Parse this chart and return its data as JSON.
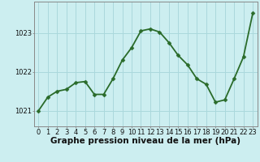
{
  "x": [
    0,
    1,
    2,
    3,
    4,
    5,
    6,
    7,
    8,
    9,
    10,
    11,
    12,
    13,
    14,
    15,
    16,
    17,
    18,
    19,
    20,
    21,
    22,
    23
  ],
  "y": [
    1021.0,
    1021.35,
    1021.5,
    1021.55,
    1021.72,
    1021.75,
    1021.42,
    1021.42,
    1021.82,
    1022.3,
    1022.62,
    1023.05,
    1023.1,
    1023.02,
    1022.75,
    1022.42,
    1022.18,
    1021.82,
    1021.68,
    1021.22,
    1021.28,
    1021.82,
    1022.38,
    1023.5
  ],
  "line_color": "#2a6b2a",
  "marker": "D",
  "marker_size": 2.5,
  "background_color": "#cceef0",
  "grid_color": "#aad8dc",
  "xlabel": "Graphe pression niveau de la mer (hPa)",
  "xlabel_fontsize": 7.5,
  "ylabel_ticks": [
    1021,
    1022,
    1023
  ],
  "ylim": [
    1020.6,
    1023.8
  ],
  "xlim": [
    -0.5,
    23.5
  ],
  "tick_fontsize": 6,
  "line_width": 1.3,
  "spine_color": "#888888"
}
